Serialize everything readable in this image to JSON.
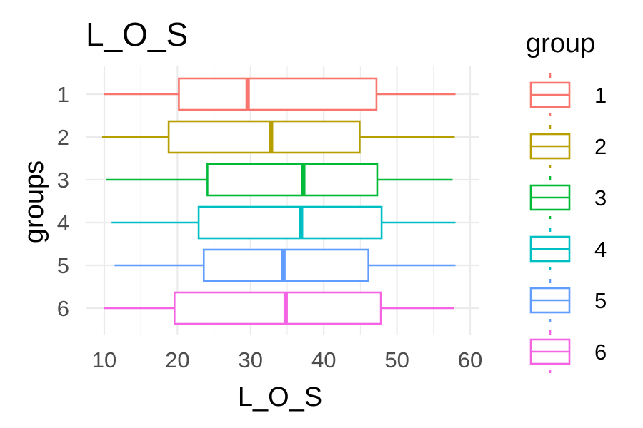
{
  "chart_data": {
    "type": "boxplot",
    "orientation": "horizontal",
    "title": "L_O_S",
    "xlabel": "L_O_S",
    "ylabel": "groups",
    "xlim": [
      8.5,
      61.5
    ],
    "x_ticks": [
      10,
      20,
      30,
      40,
      50,
      60
    ],
    "x_tick_labels": [
      "10",
      "20",
      "30",
      "40",
      "50",
      "60"
    ],
    "categories": [
      "1",
      "2",
      "3",
      "4",
      "5",
      "6"
    ],
    "legend": {
      "title": "group",
      "position": "right",
      "entries": [
        "1",
        "2",
        "3",
        "4",
        "5",
        "6"
      ]
    },
    "grid": true,
    "series": [
      {
        "group": "1",
        "color": "#F8766D",
        "whisker_low": 10.0,
        "q1": 20.2,
        "median": 29.6,
        "q3": 47.2,
        "whisker_high": 58.0
      },
      {
        "group": "2",
        "color": "#B79F00",
        "whisker_low": 9.7,
        "q1": 18.8,
        "median": 32.8,
        "q3": 44.9,
        "whisker_high": 57.9
      },
      {
        "group": "3",
        "color": "#00BA38",
        "whisker_low": 10.3,
        "q1": 24.1,
        "median": 37.2,
        "q3": 47.3,
        "whisker_high": 57.6
      },
      {
        "group": "4",
        "color": "#00BFC4",
        "whisker_low": 11.0,
        "q1": 22.9,
        "median": 36.9,
        "q3": 47.9,
        "whisker_high": 58.0
      },
      {
        "group": "5",
        "color": "#619CFF",
        "whisker_low": 11.4,
        "q1": 23.6,
        "median": 34.5,
        "q3": 46.1,
        "whisker_high": 58.0
      },
      {
        "group": "6",
        "color": "#F564E3",
        "whisker_low": 10.0,
        "q1": 19.6,
        "median": 34.8,
        "q3": 47.8,
        "whisker_high": 57.8
      }
    ]
  }
}
